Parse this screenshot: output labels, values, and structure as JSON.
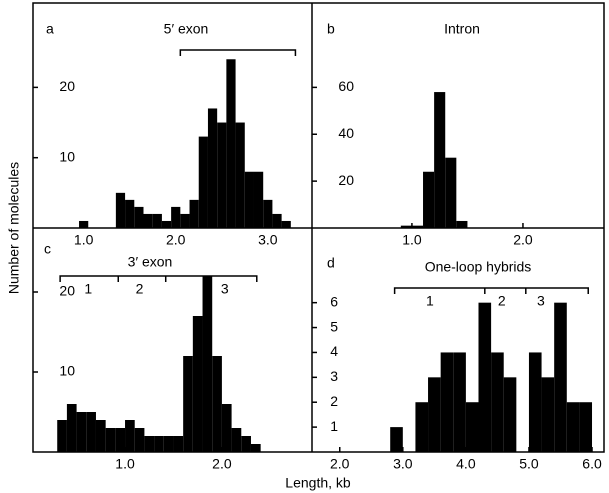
{
  "ylabel": "Number of molecules",
  "xlabel": "Length, kb",
  "chart_data": [
    {
      "type": "histogram",
      "panel": "a",
      "title": "5′ exon",
      "color": "#000000",
      "bins": [
        0.95,
        1.05,
        1.15,
        1.25,
        1.35,
        1.45,
        1.55,
        1.65,
        1.75,
        1.85,
        1.95,
        2.05,
        2.15,
        2.25,
        2.35,
        2.45,
        2.55,
        2.65,
        2.75,
        2.85,
        2.95,
        3.05,
        3.15,
        3.25
      ],
      "values": [
        1,
        0,
        0,
        0,
        5,
        4,
        3,
        2,
        2,
        1,
        3,
        2,
        4,
        13,
        17,
        15,
        24,
        15,
        8,
        8,
        4,
        2,
        1
      ],
      "xlim": [
        0.45,
        3.48
      ],
      "ylim": [
        0,
        32
      ],
      "xticks": [
        {
          "value": 1,
          "label": "1.0"
        },
        {
          "value": 2,
          "label": "2.0"
        },
        {
          "value": 3,
          "label": "3.0"
        }
      ],
      "yticks": [
        10,
        20
      ],
      "bracket": [
        2.05,
        3.3
      ]
    },
    {
      "type": "histogram",
      "panel": "b",
      "title": "Intron",
      "color": "#000000",
      "bins": [
        0.9,
        1.0,
        1.1,
        1.2,
        1.3,
        1.4,
        1.5
      ],
      "values": [
        1,
        1,
        24,
        58,
        30,
        3
      ],
      "xlim": [
        0.1,
        2.73
      ],
      "ylim": [
        0,
        96
      ],
      "xticks": [
        {
          "value": 1,
          "label": "1.0"
        },
        {
          "value": 2,
          "label": "2.0"
        }
      ],
      "yticks": [
        20,
        40,
        60
      ]
    },
    {
      "type": "histogram",
      "panel": "c",
      "title": "3′ exon",
      "color": "#000000",
      "bins": [
        0.3,
        0.4,
        0.5,
        0.6,
        0.7,
        0.8,
        0.9,
        1.0,
        1.1,
        1.2,
        1.3,
        1.4,
        1.5,
        1.6,
        1.7,
        1.8,
        1.9,
        2.0,
        2.1,
        2.2,
        2.3,
        2.4
      ],
      "values": [
        4,
        6,
        5,
        5,
        4,
        3,
        3,
        4,
        3,
        2,
        2,
        2,
        2,
        12,
        17,
        22,
        12,
        6,
        3,
        2,
        1
      ],
      "xlim": [
        0.05,
        2.93
      ],
      "ylim": [
        0,
        28
      ],
      "xticks": [
        {
          "value": 1,
          "label": "1.0"
        },
        {
          "value": 2,
          "label": "2.0"
        }
      ],
      "yticks": [
        10,
        20
      ],
      "bracket": [
        0.33,
        2.36
      ],
      "bracket_ticks": [
        0.93,
        1.42
      ],
      "bracket_labels": [
        {
          "text": "1",
          "x": 0.62
        },
        {
          "text": "2",
          "x": 1.15
        },
        {
          "text": "3",
          "x": 2.03
        }
      ]
    },
    {
      "type": "histogram",
      "panel": "d",
      "title": "One-loop hybrids",
      "color": "#000000",
      "bins": [
        2.8,
        3.0,
        3.2,
        3.4,
        3.6,
        3.8,
        4.0,
        4.2,
        4.4,
        4.6,
        4.8,
        5.0,
        5.2,
        5.4,
        5.6,
        5.8,
        6.0
      ],
      "values": [
        1,
        0,
        2,
        3,
        4,
        4,
        2,
        6,
        4,
        3,
        0,
        4,
        3,
        6,
        2,
        2
      ],
      "xlim": [
        1.56,
        6.19
      ],
      "ylim": [
        0,
        9
      ],
      "xticks": [
        {
          "value": 2,
          "label": "2.0"
        },
        {
          "value": 3,
          "label": "3.0"
        },
        {
          "value": 4,
          "label": "4.0"
        },
        {
          "value": 5,
          "label": "5.0"
        },
        {
          "value": 6,
          "label": "6.0"
        }
      ],
      "yticks": [
        1,
        2,
        3,
        4,
        5,
        6
      ],
      "bracket": [
        2.87,
        5.94
      ],
      "bracket_ticks": [
        4.3,
        4.95
      ],
      "bracket_labels": [
        {
          "text": "1",
          "x": 3.43
        },
        {
          "text": "2",
          "x": 4.57
        },
        {
          "text": "3",
          "x": 5.19
        }
      ]
    }
  ]
}
